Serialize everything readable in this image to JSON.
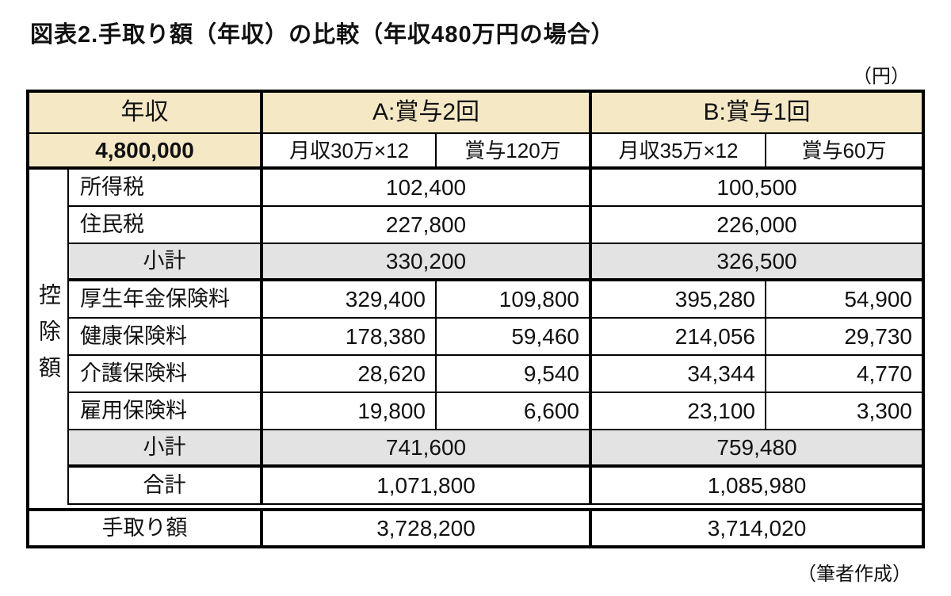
{
  "title": "図表2.手取り額（年収）の比較（年収480万円の場合）",
  "unit_note": "（円）",
  "credit_note": "（筆者作成）",
  "colors": {
    "header_bg": "#f5e8c5",
    "subtotal_bg": "#e3e3e3",
    "border": "#000000"
  },
  "table": {
    "header": {
      "income_label": "年収",
      "income_value": "4,800,000",
      "group_a": {
        "label": "A:賞与2回",
        "sub1": "月収30万×12",
        "sub2": "賞与120万"
      },
      "group_b": {
        "label": "B:賞与1回",
        "sub1": "月収35万×12",
        "sub2": "賞与60万"
      }
    },
    "deduction_group_label": "控除額",
    "rows": {
      "income_tax": {
        "label": "所得税",
        "a": "102,400",
        "b": "100,500"
      },
      "resident_tax": {
        "label": "住民税",
        "a": "227,800",
        "b": "226,000"
      },
      "subtotal_tax": {
        "label": "小計",
        "a": "330,200",
        "b": "326,500"
      },
      "pension": {
        "label": "厚生年金保険料",
        "a1": "329,400",
        "a2": "109,800",
        "b1": "395,280",
        "b2": "54,900"
      },
      "health": {
        "label": "健康保険料",
        "a1": "178,380",
        "a2": "59,460",
        "b1": "214,056",
        "b2": "29,730"
      },
      "nursing": {
        "label": "介護保険料",
        "a1": "28,620",
        "a2": "9,540",
        "b1": "34,344",
        "b2": "4,770"
      },
      "employment": {
        "label": "雇用保険料",
        "a1": "19,800",
        "a2": "6,600",
        "b1": "23,100",
        "b2": "3,300"
      },
      "subtotal_insurance": {
        "label": "小計",
        "a": "741,600",
        "b": "759,480"
      },
      "total": {
        "label": "合計",
        "a": "1,071,800",
        "b": "1,085,980"
      }
    },
    "net": {
      "label": "手取り額",
      "a": "3,728,200",
      "b": "3,714,020"
    }
  },
  "chart_data": {
    "type": "table",
    "title": "図表2.手取り額（年収）の比較（年収480万円の場合）",
    "unit": "円",
    "source_note": "筆者作成",
    "annual_income": 4800000,
    "scenarios": [
      {
        "name": "A:賞与2回",
        "monthly": "月収30万×12",
        "bonus": "賞与120万"
      },
      {
        "name": "B:賞与1回",
        "monthly": "月収35万×12",
        "bonus": "賞与60万"
      }
    ],
    "rows": [
      {
        "item": "所得税",
        "group": "控除額",
        "A": 102400,
        "B": 100500
      },
      {
        "item": "住民税",
        "group": "控除額",
        "A": 227800,
        "B": 226000
      },
      {
        "item": "小計（税）",
        "group": "控除額",
        "A": 330200,
        "B": 326500
      },
      {
        "item": "厚生年金保険料",
        "group": "控除額",
        "A_monthly": 329400,
        "A_bonus": 109800,
        "B_monthly": 395280,
        "B_bonus": 54900
      },
      {
        "item": "健康保険料",
        "group": "控除額",
        "A_monthly": 178380,
        "A_bonus": 59460,
        "B_monthly": 214056,
        "B_bonus": 29730
      },
      {
        "item": "介護保険料",
        "group": "控除額",
        "A_monthly": 28620,
        "A_bonus": 9540,
        "B_monthly": 34344,
        "B_bonus": 4770
      },
      {
        "item": "雇用保険料",
        "group": "控除額",
        "A_monthly": 19800,
        "A_bonus": 6600,
        "B_monthly": 23100,
        "B_bonus": 3300
      },
      {
        "item": "小計（保険料）",
        "group": "控除額",
        "A": 741600,
        "B": 759480
      },
      {
        "item": "合計",
        "group": "控除額",
        "A": 1071800,
        "B": 1085980
      },
      {
        "item": "手取り額",
        "A": 3728200,
        "B": 3714020
      }
    ]
  }
}
